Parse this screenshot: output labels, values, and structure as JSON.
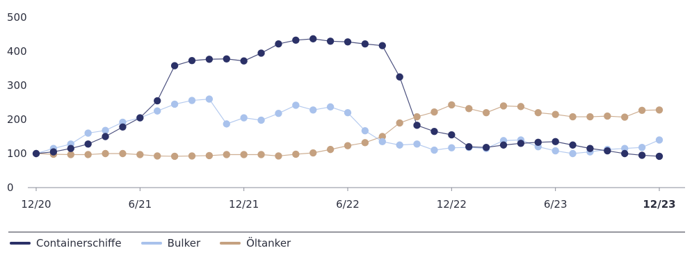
{
  "chart_data": {
    "type": "line",
    "x_ticks": [
      "12/20",
      "6/21",
      "12/21",
      "6/22",
      "12/22",
      "6/23",
      "12/23"
    ],
    "x_tick_bold": [
      false,
      false,
      false,
      false,
      false,
      false,
      true
    ],
    "x_range_months": [
      0,
      36
    ],
    "y_ticks": [
      0,
      100,
      200,
      300,
      400,
      500
    ],
    "ylim": [
      0,
      500
    ],
    "grid": false,
    "legend_position": "bottom-left",
    "series": [
      {
        "name": "Containerschiffe",
        "color": "#2b3167",
        "values": [
          100,
          105,
          115,
          128,
          150,
          178,
          205,
          255,
          358,
          373,
          377,
          378,
          372,
          395,
          422,
          433,
          437,
          430,
          428,
          422,
          417,
          325,
          183,
          165,
          155,
          120,
          118,
          125,
          130,
          133,
          135,
          125,
          115,
          108,
          100,
          95,
          92
        ]
      },
      {
        "name": "Bulker",
        "color": "#a9c2ec",
        "values": [
          100,
          115,
          128,
          160,
          168,
          192,
          205,
          225,
          245,
          256,
          260,
          187,
          205,
          198,
          218,
          242,
          228,
          237,
          220,
          167,
          135,
          125,
          128,
          110,
          117,
          118,
          115,
          138,
          140,
          120,
          108,
          100,
          105,
          112,
          115,
          118,
          140
        ]
      },
      {
        "name": "Öltanker",
        "color": "#c5a180",
        "values": [
          100,
          98,
          97,
          97,
          100,
          100,
          97,
          93,
          92,
          93,
          94,
          97,
          97,
          97,
          93,
          98,
          102,
          112,
          123,
          132,
          150,
          190,
          208,
          222,
          243,
          232,
          220,
          240,
          238,
          220,
          215,
          208,
          208,
          210,
          207,
          227,
          228
        ]
      }
    ]
  }
}
